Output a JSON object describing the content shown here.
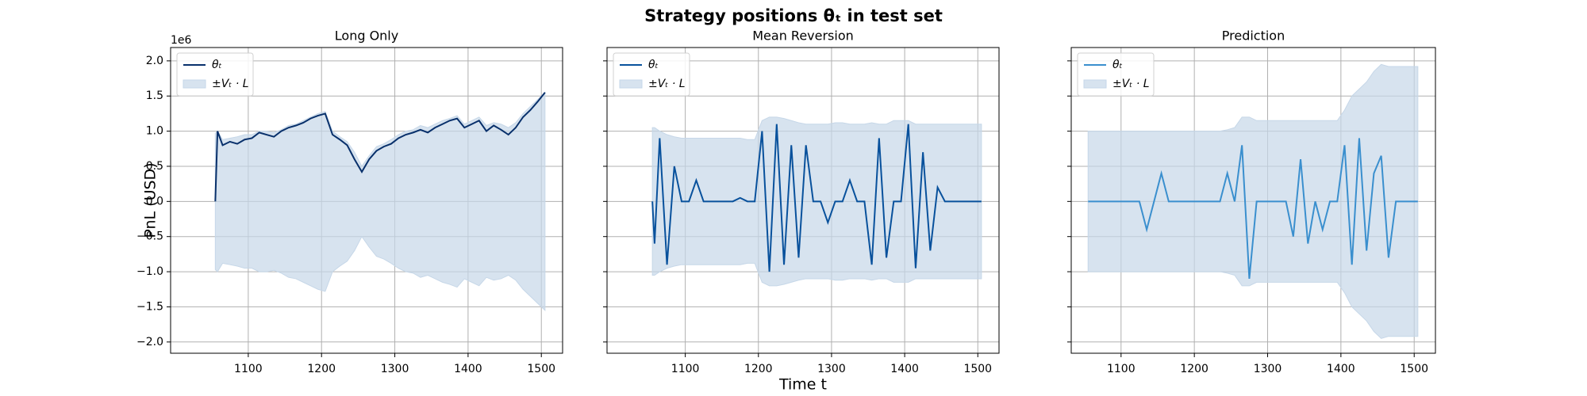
{
  "title": "Strategy positions θₜ in test set",
  "chart_data": [
    {
      "type": "line",
      "title": "Long Only",
      "ylabel": "PnL (USD)",
      "y_offset": "1e6",
      "legend": "upper left",
      "grid": true,
      "xlim": [
        994,
        1529
      ],
      "ylim": [
        -2.16,
        2.19
      ],
      "xticks": [
        1100,
        1200,
        1300,
        1400,
        1500
      ],
      "yticks": [
        {
          "value": -2,
          "label": "−2.0"
        },
        {
          "value": -1.5,
          "label": "−1.5"
        },
        {
          "value": -1,
          "label": "−1.0"
        },
        {
          "value": -0.5,
          "label": "−0.5"
        },
        {
          "value": 0,
          "label": "0.0"
        },
        {
          "value": 0.5,
          "label": "0.5"
        },
        {
          "value": 1,
          "label": "1.0"
        },
        {
          "value": 1.5,
          "label": "1.5"
        },
        {
          "value": 2,
          "label": "2.0"
        }
      ],
      "x": [
        1055,
        1058,
        1065,
        1075,
        1085,
        1095,
        1105,
        1115,
        1125,
        1135,
        1145,
        1155,
        1165,
        1175,
        1185,
        1195,
        1205,
        1215,
        1225,
        1235,
        1245,
        1255,
        1265,
        1275,
        1285,
        1295,
        1305,
        1315,
        1325,
        1335,
        1345,
        1355,
        1365,
        1375,
        1385,
        1395,
        1405,
        1415,
        1425,
        1435,
        1445,
        1455,
        1465,
        1475,
        1485,
        1495,
        1505
      ],
      "series": [
        {
          "name": "θₜ",
          "color": "#08306b",
          "values": [
            0,
            1.0,
            0.8,
            0.85,
            0.82,
            0.88,
            0.9,
            0.98,
            0.95,
            0.92,
            1.0,
            1.05,
            1.08,
            1.12,
            1.18,
            1.22,
            1.25,
            0.95,
            0.88,
            0.8,
            0.6,
            0.42,
            0.6,
            0.72,
            0.78,
            0.82,
            0.9,
            0.95,
            0.98,
            1.02,
            0.98,
            1.05,
            1.1,
            1.15,
            1.18,
            1.05,
            1.1,
            1.15,
            1.0,
            1.08,
            1.02,
            0.95,
            1.05,
            1.2,
            1.3,
            1.42,
            1.55
          ]
        },
        {
          "name": "±Vₜ · L",
          "type": "band",
          "color": "#c6d7e8",
          "values": [
            0.97,
            1.0,
            0.88,
            0.9,
            0.92,
            0.95,
            0.95,
            1.0,
            1.0,
            0.98,
            1.02,
            1.08,
            1.1,
            1.15,
            1.2,
            1.25,
            1.28,
            1.0,
            0.92,
            0.85,
            0.7,
            0.5,
            0.65,
            0.78,
            0.82,
            0.88,
            0.95,
            1.0,
            1.02,
            1.08,
            1.05,
            1.1,
            1.15,
            1.18,
            1.22,
            1.1,
            1.15,
            1.2,
            1.08,
            1.12,
            1.1,
            1.05,
            1.12,
            1.25,
            1.35,
            1.45,
            1.55
          ]
        }
      ]
    },
    {
      "type": "line",
      "title": "Mean Reversion",
      "xlabel": "Time t",
      "legend": "upper left",
      "grid": true,
      "xlim": [
        993,
        1529
      ],
      "ylim": [
        -2.16,
        2.19
      ],
      "xticks": [
        1100,
        1200,
        1300,
        1400,
        1500
      ],
      "x": [
        1055,
        1058,
        1065,
        1075,
        1085,
        1095,
        1105,
        1115,
        1125,
        1135,
        1145,
        1155,
        1165,
        1175,
        1185,
        1195,
        1205,
        1215,
        1225,
        1235,
        1245,
        1255,
        1265,
        1275,
        1285,
        1295,
        1305,
        1315,
        1325,
        1335,
        1345,
        1355,
        1365,
        1375,
        1385,
        1395,
        1405,
        1415,
        1425,
        1435,
        1445,
        1455,
        1465,
        1475,
        1485,
        1495,
        1505
      ],
      "series": [
        {
          "name": "θₜ",
          "color": "#08519c",
          "values": [
            0,
            -0.6,
            0.9,
            -0.9,
            0.5,
            0,
            0,
            0.3,
            0,
            0,
            0,
            0,
            0,
            0.05,
            0,
            0,
            1.0,
            -1.0,
            1.1,
            -0.9,
            0.8,
            -0.8,
            0.8,
            0,
            0,
            -0.3,
            0,
            0,
            0.3,
            0,
            0,
            -0.9,
            0.9,
            -0.8,
            0,
            0,
            1.1,
            -0.95,
            0.7,
            -0.7,
            0.2,
            0,
            0,
            0,
            0,
            0,
            0
          ]
        },
        {
          "name": "±Vₜ · L",
          "type": "band",
          "color": "#c6d7e8",
          "values": [
            1.05,
            1.05,
            1.0,
            0.95,
            0.92,
            0.9,
            0.9,
            0.9,
            0.9,
            0.9,
            0.9,
            0.9,
            0.9,
            0.9,
            0.88,
            0.88,
            1.15,
            1.2,
            1.2,
            1.18,
            1.15,
            1.12,
            1.1,
            1.1,
            1.1,
            1.1,
            1.12,
            1.12,
            1.1,
            1.1,
            1.1,
            1.12,
            1.1,
            1.1,
            1.15,
            1.15,
            1.15,
            1.1,
            1.1,
            1.1,
            1.1,
            1.1,
            1.1,
            1.1,
            1.1,
            1.1,
            1.1
          ]
        }
      ]
    },
    {
      "type": "line",
      "title": "Prediction",
      "legend": "upper left",
      "grid": true,
      "xlim": [
        1032,
        1529
      ],
      "ylim": [
        -2.16,
        2.19
      ],
      "xticks": [
        1100,
        1200,
        1300,
        1400,
        1500
      ],
      "x": [
        1055,
        1058,
        1065,
        1075,
        1085,
        1095,
        1105,
        1115,
        1125,
        1135,
        1145,
        1155,
        1165,
        1175,
        1185,
        1195,
        1205,
        1215,
        1225,
        1235,
        1245,
        1255,
        1265,
        1275,
        1285,
        1295,
        1305,
        1315,
        1325,
        1335,
        1345,
        1355,
        1365,
        1375,
        1385,
        1395,
        1405,
        1415,
        1425,
        1435,
        1445,
        1455,
        1465,
        1475,
        1485,
        1495,
        1505
      ],
      "series": [
        {
          "name": "θₜ",
          "color": "#3a8fce",
          "values": [
            0,
            0,
            0,
            0,
            0,
            0,
            0,
            0,
            0,
            -0.4,
            0,
            0.4,
            0,
            0,
            0,
            0,
            0,
            0,
            0,
            0,
            0.4,
            0,
            0.8,
            -1.1,
            0,
            0,
            0,
            0,
            0,
            -0.5,
            0.6,
            -0.6,
            0,
            -0.4,
            0,
            0,
            0.8,
            -0.9,
            0.9,
            -0.7,
            0.4,
            0.65,
            -0.8,
            0,
            0,
            0,
            0
          ]
        },
        {
          "name": "±Vₜ · L",
          "type": "band",
          "color": "#c6d7e8",
          "values": [
            1.0,
            1.0,
            1.0,
            1.0,
            1.0,
            1.0,
            1.0,
            1.0,
            1.0,
            1.0,
            1.0,
            1.0,
            1.0,
            1.0,
            1.0,
            1.0,
            1.0,
            1.0,
            1.0,
            1.0,
            1.02,
            1.05,
            1.2,
            1.2,
            1.15,
            1.15,
            1.15,
            1.15,
            1.15,
            1.15,
            1.15,
            1.15,
            1.15,
            1.15,
            1.15,
            1.15,
            1.3,
            1.5,
            1.6,
            1.7,
            1.85,
            1.95,
            1.92,
            1.92,
            1.92,
            1.92,
            1.92
          ]
        }
      ]
    }
  ]
}
